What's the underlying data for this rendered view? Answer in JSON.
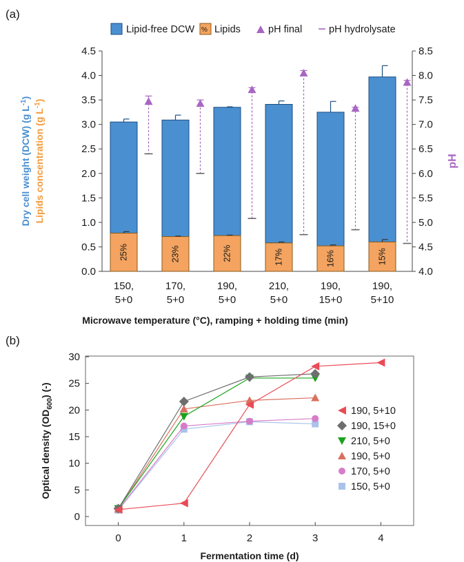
{
  "figure": {
    "panel_a_label": "(a)",
    "panel_b_label": "(b)"
  },
  "chart_data": [
    {
      "type": "bar",
      "stacked": true,
      "categories": [
        [
          "150,",
          "5+0"
        ],
        [
          "170,",
          "5+0"
        ],
        [
          "190,",
          "5+0"
        ],
        [
          "210,",
          "5+0"
        ],
        [
          "190,",
          "15+0"
        ],
        [
          "190,",
          "5+10"
        ]
      ],
      "series": [
        {
          "name": "Lipid-free DCW",
          "color": "#4a8fd0",
          "values": [
            2.27,
            2.38,
            2.62,
            2.83,
            2.73,
            3.37
          ],
          "totals": [
            3.05,
            3.09,
            3.35,
            3.41,
            3.25,
            3.97
          ],
          "error": [
            0.06,
            0.1,
            0.01,
            0.07,
            0.22,
            0.23
          ]
        },
        {
          "name": "Lipids",
          "color": "#f4a460",
          "values": [
            0.78,
            0.71,
            0.73,
            0.58,
            0.52,
            0.6
          ],
          "error": [
            0.03,
            0.01,
            0.01,
            0.02,
            0.02,
            0.05
          ],
          "labels": [
            "25%",
            "23%",
            "22%",
            "17%",
            "16%",
            "15%"
          ]
        },
        {
          "name": "pH final",
          "color": "#a866c3",
          "axis": "right",
          "values": [
            7.47,
            7.43,
            7.71,
            8.05,
            7.33,
            7.86
          ]
        },
        {
          "name": "pH hydrolysate",
          "color": "#a866c3",
          "axis": "right",
          "values": [
            6.4,
            6.0,
            5.08,
            4.75,
            4.85,
            4.57
          ],
          "range_top": [
            7.58,
            7.5,
            7.75,
            8.1,
            7.35,
            7.9
          ]
        }
      ],
      "legend_lipids_swatch": "%",
      "xlabel": "Microwave temperature (°C), ramping + holding time (min)",
      "ylabel": "Dry cell weight (DCW) (g L",
      "ylabel_sup": "-1",
      "ylabel_close": ")",
      "ylabel2": "Lipids concentration (g L",
      "ylabel2_sup": "-1",
      "ylabel2_close": ")",
      "ylabel_right": "pH",
      "ylim": [
        0,
        4.5
      ],
      "yticks": [
        "0.0",
        "0.5",
        "1.0",
        "1.5",
        "2.0",
        "2.5",
        "3.0",
        "3.5",
        "4.0",
        "4.5"
      ],
      "y2lim": [
        4.0,
        8.5
      ],
      "y2ticks": [
        "4.0",
        "4.5",
        "5.0",
        "5.5",
        "6.0",
        "6.5",
        "7.0",
        "7.5",
        "8.0",
        "8.5"
      ],
      "legend_position": "top",
      "grid": false
    },
    {
      "type": "line",
      "x": [
        0,
        1,
        2,
        3,
        4
      ],
      "xticks": [
        "0",
        "1",
        "2",
        "3",
        "4"
      ],
      "xlim": [
        -0.5,
        4.5
      ],
      "ylim": [
        0,
        30
      ],
      "yticks": [
        "0",
        "5",
        "10",
        "15",
        "20",
        "25",
        "30"
      ],
      "xlabel": "Fermentation time (d)",
      "ylabel": "Optical density (OD",
      "ylabel_sub": "600",
      "ylabel_close": ") (-)",
      "legend_position": "right",
      "grid": false,
      "series": [
        {
          "name": "190, 5+10",
          "color": "#ea4b56",
          "marker": "triangle-left",
          "values": [
            1.3,
            2.5,
            21.0,
            28.2,
            28.9
          ]
        },
        {
          "name": "190, 15+0",
          "color": "#6e6e6e",
          "marker": "diamond",
          "values": [
            1.5,
            21.6,
            26.2,
            26.8,
            null
          ]
        },
        {
          "name": "210, 5+0",
          "color": "#1aa31a",
          "marker": "triangle-down",
          "values": [
            1.5,
            18.8,
            26.0,
            26.0,
            null
          ]
        },
        {
          "name": "190, 5+0",
          "color": "#d9705e",
          "marker": "triangle-up",
          "values": [
            1.4,
            20.2,
            21.8,
            22.3,
            null
          ]
        },
        {
          "name": "170, 5+0",
          "color": "#d87bc8",
          "marker": "circle",
          "values": [
            1.3,
            17.0,
            17.9,
            18.4,
            null
          ]
        },
        {
          "name": "150, 5+0",
          "color": "#a9c3ea",
          "marker": "square",
          "values": [
            1.2,
            16.4,
            17.8,
            17.4,
            null
          ]
        }
      ]
    }
  ]
}
